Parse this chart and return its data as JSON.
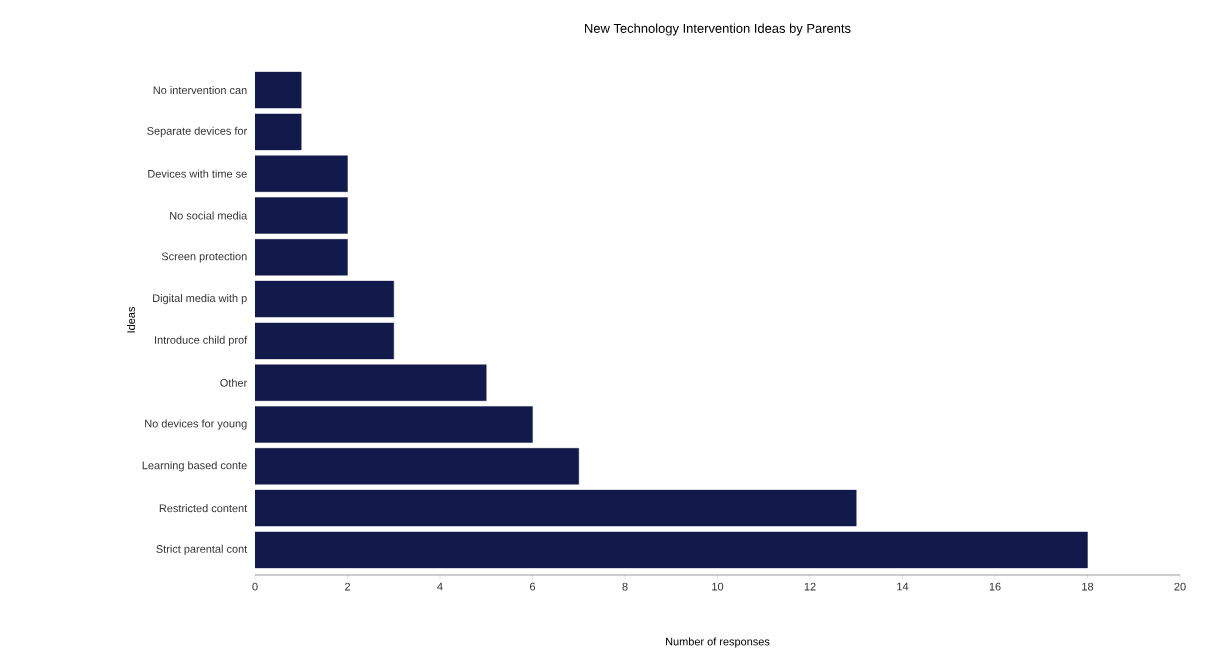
{
  "chart_data": {
    "type": "bar",
    "orientation": "horizontal",
    "title": "New Technology Intervention Ideas by Parents",
    "xlabel": "Number of responses",
    "ylabel": "Ideas",
    "categories": [
      "No intervention can",
      "Separate devices for",
      "Devices with time se",
      "No social media",
      "Screen protection",
      "Digital media with p",
      "Introduce child prof",
      "Other",
      "No devices for young",
      "Learning based conte",
      "Restricted content",
      "Strict parental cont"
    ],
    "values": [
      1,
      1,
      2,
      2,
      2,
      3,
      3,
      5,
      6,
      7,
      13,
      18
    ],
    "color": "#111a4a",
    "xlim": [
      0,
      20
    ],
    "xticks": [
      0,
      2,
      4,
      6,
      8,
      10,
      12,
      14,
      16,
      18,
      20
    ]
  }
}
